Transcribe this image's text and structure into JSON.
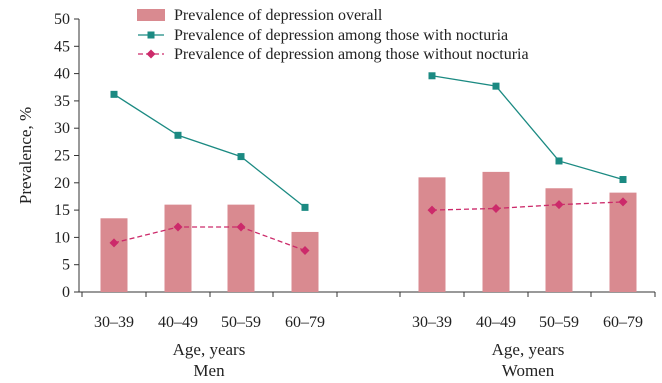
{
  "chart_data": {
    "type": "bar",
    "ylabel": "Prevalence, %",
    "ylim": [
      0,
      50
    ],
    "yticks": [
      0,
      5,
      10,
      15,
      20,
      25,
      30,
      35,
      40,
      45,
      50
    ],
    "groups": [
      {
        "label": "Men",
        "xlabel": "Age, years",
        "categories": [
          "30–39",
          "40–49",
          "50–59",
          "60–79"
        ]
      },
      {
        "label": "Women",
        "xlabel": "Age, years",
        "categories": [
          "30–39",
          "40–49",
          "50–59",
          "60–79"
        ]
      }
    ],
    "series": [
      {
        "name": "Prevalence of depression overall",
        "kind": "bar",
        "color": "#d98a90",
        "values": [
          [
            13.5,
            16,
            16,
            11
          ],
          [
            21,
            22,
            19,
            18.2
          ]
        ]
      },
      {
        "name": "Prevalence of depression among those with nocturia",
        "kind": "line",
        "style": "solid",
        "marker": "square",
        "color": "#1b8a82",
        "values": [
          [
            36.2,
            28.7,
            24.8,
            15.5
          ],
          [
            39.6,
            37.7,
            24,
            20.6
          ]
        ]
      },
      {
        "name": "Prevalence of depression among those without nocturia",
        "kind": "line",
        "style": "dashed",
        "marker": "diamond",
        "color": "#cc2a6a",
        "values": [
          [
            9,
            11.9,
            11.9,
            7.6
          ],
          [
            15,
            15.3,
            16,
            16.5
          ]
        ]
      }
    ],
    "legend": "top"
  }
}
